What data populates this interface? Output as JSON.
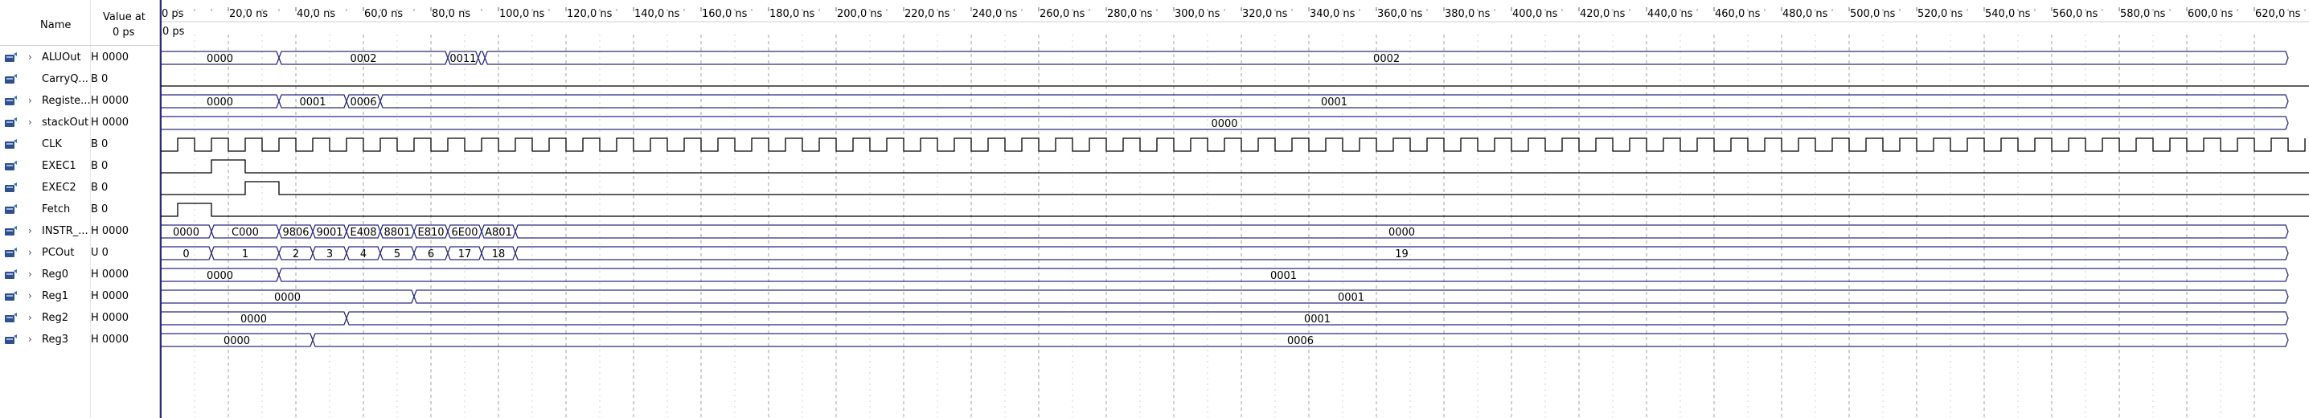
{
  "header": {
    "name_label": "Name",
    "value_label_line1": "Value at",
    "value_label_line2": "0 ps"
  },
  "cursor": {
    "label": "0 ps"
  },
  "timeline": {
    "ticks": [
      "0 ps",
      "20,0 ns",
      "40,0 ns",
      "60,0 ns",
      "80,0 ns",
      "100,0 ns",
      "120,0 ns",
      "140,0 ns",
      "160,0 ns",
      "180,0 ns",
      "200,0 ns",
      "220,0 ns",
      "240,0 ns",
      "260,0 ns",
      "280,0 ns",
      "300,0 ns",
      "320,0 ns",
      "340,0 ns",
      "360,0 ns",
      "380,0 ns",
      "400,0 ns",
      "420,0 ns",
      "440,0 ns",
      "460,0 ns",
      "480,0 ns",
      "500,0 ns",
      "520,0 ns",
      "540,0 ns",
      "560,0 ns",
      "580,0 ns",
      "600,0 ns",
      "620,0 ns"
    ],
    "ns_per_tick": 20,
    "clock_period_ns": 10
  },
  "colors": {
    "wave": "#2a2a80",
    "bit_wave": "#000000",
    "grid": "#a0a0a0",
    "cursor_line": "#2a2a80"
  },
  "signals": [
    {
      "name": "ALUOut",
      "value": "H 0000",
      "type": "bus",
      "icon": "bus-signal-icon",
      "expandable": true,
      "segments": [
        {
          "start": 0,
          "end": 35,
          "label": "0000"
        },
        {
          "start": 35,
          "end": 85,
          "label": "0002"
        },
        {
          "start": 85,
          "end": 94,
          "label": "0011"
        },
        {
          "start": 94,
          "end": 96,
          "label": ""
        },
        {
          "start": 96,
          "end": 630,
          "label": "0002"
        }
      ]
    },
    {
      "name": "CarryQ...",
      "value": "B 0",
      "type": "bit",
      "icon": "bit-signal-icon",
      "expandable": false,
      "transitions": [
        [
          0,
          0
        ]
      ]
    },
    {
      "name": "Registe...",
      "value": "H 0000",
      "type": "bus",
      "icon": "bus-signal-icon",
      "expandable": true,
      "segments": [
        {
          "start": 0,
          "end": 35,
          "label": "0000"
        },
        {
          "start": 35,
          "end": 55,
          "label": "0001"
        },
        {
          "start": 55,
          "end": 65,
          "label": "0006"
        },
        {
          "start": 65,
          "end": 630,
          "label": "0001"
        }
      ]
    },
    {
      "name": "stackOut",
      "value": "H 0000",
      "type": "bus",
      "icon": "bus-signal-icon",
      "expandable": true,
      "segments": [
        {
          "start": 0,
          "end": 630,
          "label": "0000"
        }
      ]
    },
    {
      "name": "CLK",
      "value": "B 0",
      "type": "clock",
      "icon": "bit-signal-icon",
      "expandable": false
    },
    {
      "name": "EXEC1",
      "value": "B 0",
      "type": "bit",
      "icon": "bit-signal-icon",
      "expandable": false,
      "transitions": [
        [
          0,
          0
        ],
        [
          15,
          1
        ],
        [
          25,
          0
        ]
      ]
    },
    {
      "name": "EXEC2",
      "value": "B 0",
      "type": "bit",
      "icon": "bit-signal-icon",
      "expandable": false,
      "transitions": [
        [
          0,
          0
        ],
        [
          25,
          1
        ],
        [
          35,
          0
        ]
      ]
    },
    {
      "name": "Fetch",
      "value": "B 0",
      "type": "bit",
      "icon": "bit-signal-icon",
      "expandable": false,
      "transitions": [
        [
          0,
          0
        ],
        [
          5,
          1
        ],
        [
          15,
          0
        ]
      ]
    },
    {
      "name": "INSTR_...",
      "value": "H 0000",
      "type": "bus",
      "icon": "bus-signal-icon",
      "expandable": true,
      "segments": [
        {
          "start": 0,
          "end": 15,
          "label": "0000"
        },
        {
          "start": 15,
          "end": 35,
          "label": "C000"
        },
        {
          "start": 35,
          "end": 45,
          "label": "9806"
        },
        {
          "start": 45,
          "end": 55,
          "label": "9001"
        },
        {
          "start": 55,
          "end": 65,
          "label": "E408"
        },
        {
          "start": 65,
          "end": 75,
          "label": "8801"
        },
        {
          "start": 75,
          "end": 85,
          "label": "E810"
        },
        {
          "start": 85,
          "end": 95,
          "label": "6E00"
        },
        {
          "start": 95,
          "end": 105,
          "label": "A801"
        },
        {
          "start": 105,
          "end": 630,
          "label": "0000"
        }
      ]
    },
    {
      "name": "PCOut",
      "value": "U 0",
      "type": "bus",
      "icon": "bus-signal-icon",
      "expandable": true,
      "segments": [
        {
          "start": 0,
          "end": 15,
          "label": "0"
        },
        {
          "start": 15,
          "end": 35,
          "label": "1"
        },
        {
          "start": 35,
          "end": 45,
          "label": "2"
        },
        {
          "start": 45,
          "end": 55,
          "label": "3"
        },
        {
          "start": 55,
          "end": 65,
          "label": "4"
        },
        {
          "start": 65,
          "end": 75,
          "label": "5"
        },
        {
          "start": 75,
          "end": 85,
          "label": "6"
        },
        {
          "start": 85,
          "end": 95,
          "label": "17"
        },
        {
          "start": 95,
          "end": 105,
          "label": "18"
        },
        {
          "start": 105,
          "end": 630,
          "label": "19"
        }
      ]
    },
    {
      "name": "Reg0",
      "value": "H 0000",
      "type": "bus",
      "icon": "bus-signal-icon",
      "expandable": true,
      "segments": [
        {
          "start": 0,
          "end": 35,
          "label": "0000"
        },
        {
          "start": 35,
          "end": 630,
          "label": "0001"
        }
      ]
    },
    {
      "name": "Reg1",
      "value": "H 0000",
      "type": "bus",
      "icon": "bus-signal-icon",
      "expandable": true,
      "segments": [
        {
          "start": 0,
          "end": 75,
          "label": "0000"
        },
        {
          "start": 75,
          "end": 630,
          "label": "0001"
        }
      ]
    },
    {
      "name": "Reg2",
      "value": "H 0000",
      "type": "bus",
      "icon": "bus-signal-icon",
      "expandable": true,
      "segments": [
        {
          "start": 0,
          "end": 55,
          "label": "0000"
        },
        {
          "start": 55,
          "end": 630,
          "label": "0001"
        }
      ]
    },
    {
      "name": "Reg3",
      "value": "H 0000",
      "type": "bus",
      "icon": "bus-signal-icon",
      "expandable": true,
      "segments": [
        {
          "start": 0,
          "end": 45,
          "label": "0000"
        },
        {
          "start": 45,
          "end": 630,
          "label": "0006"
        }
      ]
    }
  ]
}
